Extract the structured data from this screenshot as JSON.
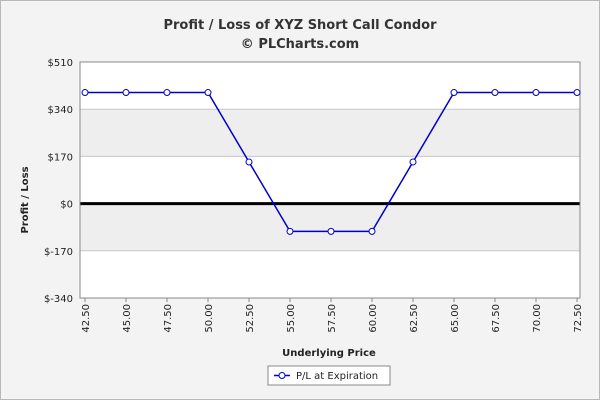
{
  "chart_data": {
    "type": "line",
    "title": "Profit / Loss of XYZ Short Call Condor",
    "subtitle": "© PLCharts.com",
    "xlabel": "Underlying Price",
    "ylabel": "Profit / Loss",
    "categories": [
      "42.50",
      "45.00",
      "47.50",
      "50.00",
      "52.50",
      "55.00",
      "57.50",
      "60.00",
      "62.50",
      "65.00",
      "67.50",
      "70.00",
      "72.50"
    ],
    "y_ticks": [
      "$510",
      "$340",
      "$170",
      "$0",
      "$-170",
      "$-340"
    ],
    "ylim": [
      -340,
      510
    ],
    "series": [
      {
        "name": "P/L at Expiration",
        "values": [
          400,
          400,
          400,
          400,
          150,
          -100,
          -100,
          -100,
          150,
          400,
          400,
          400,
          400
        ]
      }
    ],
    "grid": true,
    "legend_position": "bottom-center",
    "colors": {
      "line": "#0000cc",
      "zero_line": "#000000",
      "band_light": "#ffffff",
      "band_dark": "#eeeeee"
    }
  }
}
